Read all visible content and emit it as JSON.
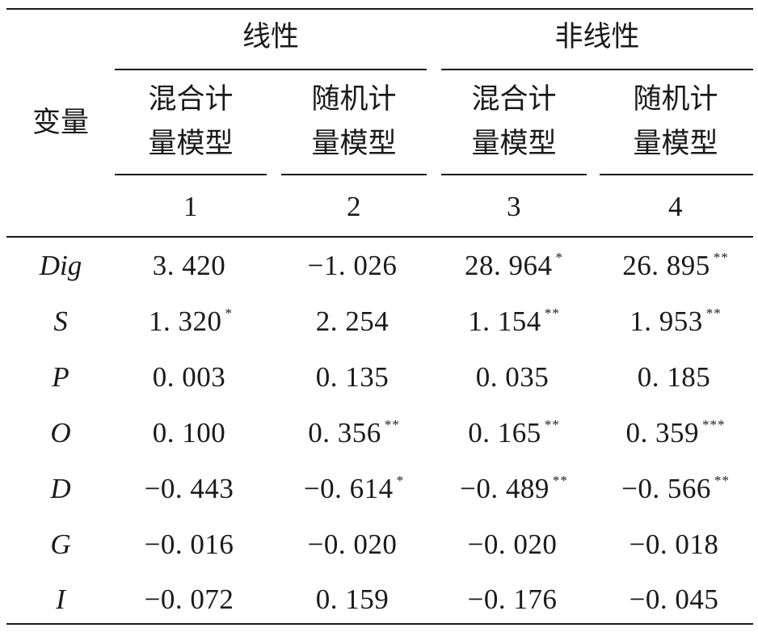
{
  "header": {
    "variable_label": "变量",
    "group_linear": "线性",
    "group_nonlinear": "非线性",
    "models": [
      {
        "line1": "混合计",
        "line2": "量模型",
        "index": "1"
      },
      {
        "line1": "随机计",
        "line2": "量模型",
        "index": "2"
      },
      {
        "line1": "混合计",
        "line2": "量模型",
        "index": "3"
      },
      {
        "line1": "随机计",
        "line2": "量模型",
        "index": "4"
      }
    ]
  },
  "rows": [
    {
      "var": "Dig",
      "cells": [
        {
          "v": "3. 420",
          "s": ""
        },
        {
          "v": "−1. 026",
          "s": ""
        },
        {
          "v": "28. 964",
          "s": "*"
        },
        {
          "v": "26. 895",
          "s": "**"
        }
      ]
    },
    {
      "var": "S",
      "cells": [
        {
          "v": "1. 320",
          "s": "*"
        },
        {
          "v": "2. 254",
          "s": ""
        },
        {
          "v": "1. 154",
          "s": "**"
        },
        {
          "v": "1. 953",
          "s": "**"
        }
      ]
    },
    {
      "var": "P",
      "cells": [
        {
          "v": "0. 003",
          "s": ""
        },
        {
          "v": "0. 135",
          "s": ""
        },
        {
          "v": "0. 035",
          "s": ""
        },
        {
          "v": "0. 185",
          "s": ""
        }
      ]
    },
    {
      "var": "O",
      "cells": [
        {
          "v": "0. 100",
          "s": ""
        },
        {
          "v": "0. 356",
          "s": "**"
        },
        {
          "v": "0. 165",
          "s": "**"
        },
        {
          "v": "0. 359",
          "s": "***"
        }
      ]
    },
    {
      "var": "D",
      "cells": [
        {
          "v": "−0. 443",
          "s": ""
        },
        {
          "v": "−0. 614",
          "s": "*"
        },
        {
          "v": "−0. 489",
          "s": "**"
        },
        {
          "v": "−0. 566",
          "s": "**"
        }
      ]
    },
    {
      "var": "G",
      "cells": [
        {
          "v": "−0. 016",
          "s": ""
        },
        {
          "v": "−0. 020",
          "s": ""
        },
        {
          "v": "−0. 020",
          "s": ""
        },
        {
          "v": "−0. 018",
          "s": ""
        }
      ]
    },
    {
      "var": "I",
      "cells": [
        {
          "v": "−0. 072",
          "s": ""
        },
        {
          "v": "0. 159",
          "s": ""
        },
        {
          "v": "−0. 176",
          "s": ""
        },
        {
          "v": "−0. 045",
          "s": ""
        }
      ]
    }
  ]
}
